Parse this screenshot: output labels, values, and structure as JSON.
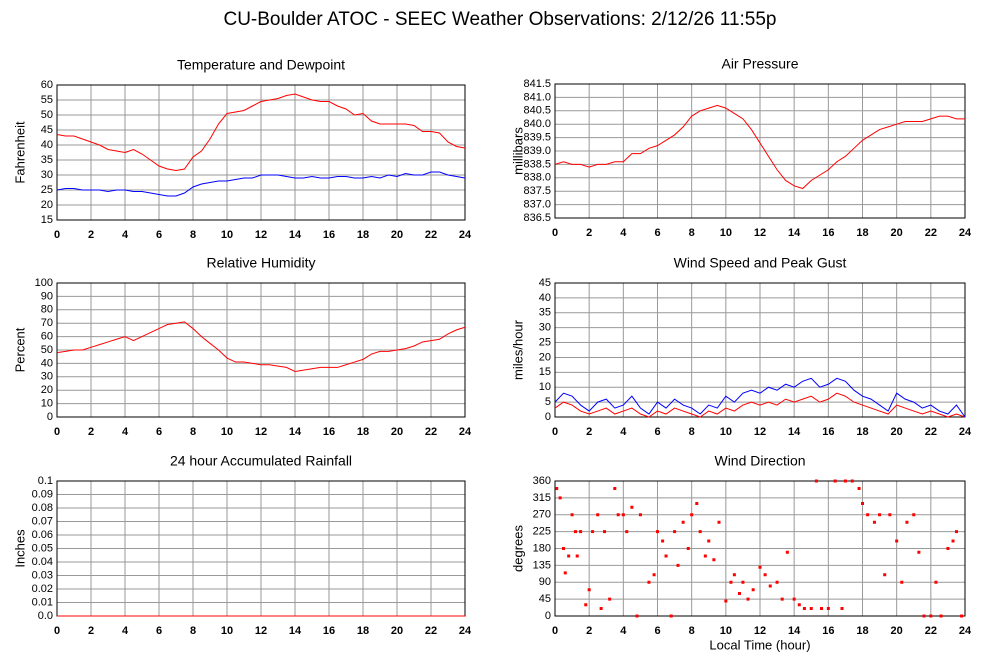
{
  "title": "CU-Boulder ATOC - SEEC Weather Observations: 2/12/26 11:55p",
  "chart_data": [
    {
      "type": "line",
      "title": "Temperature and Dewpoint",
      "y_label": "Fahrenheit",
      "x": [
        0,
        0.5,
        1,
        1.5,
        2,
        2.5,
        3,
        3.5,
        4,
        4.5,
        5,
        5.5,
        6,
        6.5,
        7,
        7.5,
        8,
        8.5,
        9,
        9.5,
        10,
        10.5,
        11,
        11.5,
        12,
        12.5,
        13,
        13.5,
        14,
        14.5,
        15,
        15.5,
        16,
        16.5,
        17,
        17.5,
        18,
        18.5,
        19,
        19.5,
        20,
        20.5,
        21,
        21.5,
        22,
        22.5,
        23,
        23.5,
        24
      ],
      "series": [
        {
          "color": "#ff0000",
          "values": [
            43.5,
            43,
            43,
            42,
            41,
            40,
            38.5,
            38,
            37.5,
            38.5,
            37,
            35,
            33,
            32,
            31.5,
            32,
            36,
            38,
            42,
            47,
            50.5,
            51,
            51.5,
            53,
            54.5,
            55,
            55.5,
            56.5,
            57,
            56,
            55,
            54.5,
            54.5,
            53,
            52,
            50,
            50.5,
            48,
            47,
            47,
            47,
            47,
            46.5,
            44.5,
            44.5,
            44,
            41,
            39.5,
            39
          ]
        },
        {
          "color": "#0000ff",
          "values": [
            25,
            25.5,
            25.5,
            25,
            25,
            25,
            24.5,
            25,
            25,
            24.5,
            24.5,
            24,
            23.5,
            23,
            23,
            24,
            26,
            27,
            27.5,
            28,
            28,
            28.5,
            29,
            29,
            30,
            30,
            30,
            29.5,
            29,
            29,
            29.5,
            29,
            29,
            29.5,
            29.5,
            29,
            29,
            29.5,
            29,
            30,
            29.5,
            30.5,
            30,
            30,
            31,
            31,
            30,
            29.5,
            29
          ]
        }
      ],
      "xlim": [
        0,
        24
      ],
      "xticks": [
        0,
        2,
        4,
        6,
        8,
        10,
        12,
        14,
        16,
        18,
        20,
        22,
        24
      ],
      "ylim": [
        15,
        60
      ],
      "yticks": [
        15,
        20,
        25,
        30,
        35,
        40,
        45,
        50,
        55,
        60
      ],
      "grid": true
    },
    {
      "type": "line",
      "title": "Air Pressure",
      "y_label": "millibars",
      "x": [
        0,
        0.5,
        1,
        1.5,
        2,
        2.5,
        3,
        3.5,
        4,
        4.5,
        5,
        5.5,
        6,
        6.5,
        7,
        7.5,
        8,
        8.5,
        9,
        9.5,
        10,
        10.5,
        11,
        11.5,
        12,
        12.5,
        13,
        13.5,
        14,
        14.5,
        15,
        15.5,
        16,
        16.5,
        17,
        17.5,
        18,
        18.5,
        19,
        19.5,
        20,
        20.5,
        21,
        21.5,
        22,
        22.5,
        23,
        23.5,
        24
      ],
      "series": [
        {
          "color": "#ff0000",
          "values": [
            838.5,
            838.6,
            838.5,
            838.5,
            838.4,
            838.5,
            838.5,
            838.6,
            838.6,
            838.9,
            838.9,
            839.1,
            839.2,
            839.4,
            839.6,
            839.9,
            840.3,
            840.5,
            840.6,
            840.7,
            840.6,
            840.4,
            840.2,
            839.8,
            839.3,
            838.8,
            838.3,
            837.9,
            837.7,
            837.6,
            837.9,
            838.1,
            838.3,
            838.6,
            838.8,
            839.1,
            839.4,
            839.6,
            839.8,
            839.9,
            840.0,
            840.1,
            840.1,
            840.1,
            840.2,
            840.3,
            840.3,
            840.2,
            840.2
          ]
        }
      ],
      "xlim": [
        0,
        24
      ],
      "xticks": [
        0,
        2,
        4,
        6,
        8,
        10,
        12,
        14,
        16,
        18,
        20,
        22,
        24
      ],
      "ylim": [
        836.5,
        841.5
      ],
      "yticks": [
        836.5,
        {
          "value": 837,
          "label": "837.0"
        },
        837.5,
        {
          "value": 838,
          "label": "838.0"
        },
        838.5,
        {
          "value": 839,
          "label": "839.0"
        },
        839.5,
        {
          "value": 840,
          "label": "840.0"
        },
        840.5,
        {
          "value": 841,
          "label": "841.0"
        },
        841.5
      ],
      "grid": true
    },
    {
      "type": "line",
      "title": "Relative Humidity",
      "y_label": "Percent",
      "x": [
        0,
        0.5,
        1,
        1.5,
        2,
        2.5,
        3,
        3.5,
        4,
        4.5,
        5,
        5.5,
        6,
        6.5,
        7,
        7.5,
        8,
        8.5,
        9,
        9.5,
        10,
        10.5,
        11,
        11.5,
        12,
        12.5,
        13,
        13.5,
        14,
        14.5,
        15,
        15.5,
        16,
        16.5,
        17,
        17.5,
        18,
        18.5,
        19,
        19.5,
        20,
        20.5,
        21,
        21.5,
        22,
        22.5,
        23,
        23.5,
        24
      ],
      "series": [
        {
          "color": "#ff0000",
          "values": [
            48,
            49,
            50,
            50,
            52,
            54,
            56,
            58,
            60,
            57,
            60,
            63,
            66,
            69,
            70,
            71,
            66,
            60,
            55,
            50,
            44,
            41,
            41,
            40,
            39,
            39,
            38,
            37,
            34,
            35,
            36,
            37,
            37,
            37,
            39,
            41,
            43,
            47,
            49,
            49,
            50,
            51,
            53,
            56,
            57,
            58,
            62,
            65,
            67
          ]
        }
      ],
      "xlim": [
        0,
        24
      ],
      "xticks": [
        0,
        2,
        4,
        6,
        8,
        10,
        12,
        14,
        16,
        18,
        20,
        22,
        24
      ],
      "ylim": [
        0,
        100
      ],
      "yticks": [
        0,
        10,
        20,
        30,
        40,
        50,
        60,
        70,
        80,
        90,
        100
      ],
      "grid": true
    },
    {
      "type": "line",
      "title": "Wind Speed and Peak Gust",
      "y_label": "miles/hour",
      "x": [
        0,
        0.5,
        1,
        1.5,
        2,
        2.5,
        3,
        3.5,
        4,
        4.5,
        5,
        5.5,
        6,
        6.5,
        7,
        7.5,
        8,
        8.5,
        9,
        9.5,
        10,
        10.5,
        11,
        11.5,
        12,
        12.5,
        13,
        13.5,
        14,
        14.5,
        15,
        15.5,
        16,
        16.5,
        17,
        17.5,
        18,
        18.5,
        19,
        19.5,
        20,
        20.5,
        21,
        21.5,
        22,
        22.5,
        23,
        23.5,
        24
      ],
      "series": [
        {
          "color": "#ff0000",
          "values": [
            3,
            5,
            4,
            2,
            1,
            2,
            3,
            1,
            2,
            3,
            1,
            0,
            2,
            1,
            3,
            2,
            1,
            0,
            2,
            1,
            3,
            2,
            4,
            5,
            4,
            5,
            4,
            6,
            5,
            6,
            7,
            5,
            6,
            8,
            7,
            5,
            4,
            3,
            2,
            1,
            4,
            3,
            2,
            1,
            2,
            1,
            0,
            1,
            0
          ]
        },
        {
          "color": "#0000ff",
          "values": [
            5,
            8,
            7,
            4,
            2,
            5,
            6,
            3,
            4,
            7,
            3,
            1,
            5,
            3,
            6,
            4,
            3,
            1,
            4,
            3,
            7,
            5,
            8,
            9,
            8,
            10,
            9,
            11,
            10,
            12,
            13,
            10,
            11,
            13,
            12,
            9,
            7,
            6,
            4,
            2,
            8,
            6,
            5,
            3,
            4,
            2,
            1,
            4,
            0
          ]
        }
      ],
      "xlim": [
        0,
        24
      ],
      "xticks": [
        0,
        2,
        4,
        6,
        8,
        10,
        12,
        14,
        16,
        18,
        20,
        22,
        24
      ],
      "ylim": [
        0,
        45
      ],
      "yticks": [
        0,
        5,
        10,
        15,
        20,
        25,
        30,
        35,
        40,
        45
      ],
      "grid": true
    },
    {
      "type": "line",
      "title": "24 hour Accumulated Rainfall",
      "y_label": "Inches",
      "x": [
        0,
        24
      ],
      "series": [
        {
          "color": "#ff0000",
          "values": [
            0,
            0
          ]
        }
      ],
      "xlim": [
        0,
        24
      ],
      "xticks": [
        0,
        2,
        4,
        6,
        8,
        10,
        12,
        14,
        16,
        18,
        20,
        22,
        24
      ],
      "ylim": [
        0,
        0.1
      ],
      "yticks": [
        {
          "value": 0,
          "label": "0.0"
        },
        0.01,
        0.02,
        0.03,
        0.04,
        0.05,
        0.06,
        0.07,
        0.08,
        0.09,
        0.1
      ],
      "grid": true
    },
    {
      "type": "scatter",
      "title": "Wind Direction",
      "y_label": "degrees",
      "x_label": "Local Time (hour)",
      "x": [
        0.1,
        0.3,
        0.5,
        0.6,
        0.8,
        1,
        1.2,
        1.3,
        1.5,
        1.8,
        2,
        2.2,
        2.5,
        2.7,
        2.9,
        3.2,
        3.5,
        3.7,
        4,
        4.2,
        4.5,
        4.8,
        5,
        5.5,
        5.8,
        6,
        6.3,
        6.5,
        6.8,
        7,
        7.2,
        7.5,
        7.8,
        8,
        8.3,
        8.5,
        8.8,
        9,
        9.3,
        9.6,
        10,
        10.3,
        10.5,
        10.8,
        11,
        11.3,
        11.6,
        12,
        12.3,
        12.6,
        13,
        13.3,
        13.6,
        14,
        14.3,
        14.6,
        15,
        15.3,
        15.6,
        16,
        16.4,
        16.8,
        17,
        17.4,
        17.8,
        18,
        18.3,
        18.7,
        19,
        19.3,
        19.6,
        20,
        20.3,
        20.6,
        21,
        21.3,
        21.6,
        22,
        22.3,
        22.6,
        23,
        23.3,
        23.5,
        23.8
      ],
      "series": [
        {
          "color": "#ff0000",
          "values": [
            340,
            315,
            180,
            115,
            160,
            270,
            225,
            160,
            225,
            30,
            70,
            225,
            270,
            20,
            225,
            45,
            340,
            270,
            270,
            225,
            290,
            0,
            270,
            90,
            110,
            225,
            200,
            160,
            0,
            225,
            135,
            250,
            180,
            270,
            300,
            225,
            160,
            200,
            150,
            250,
            40,
            90,
            110,
            60,
            90,
            45,
            70,
            130,
            110,
            80,
            90,
            45,
            170,
            45,
            30,
            20,
            20,
            360,
            20,
            20,
            360,
            20,
            360,
            360,
            340,
            300,
            270,
            250,
            270,
            110,
            270,
            200,
            90,
            250,
            270,
            170,
            0,
            0,
            90,
            0,
            180,
            200,
            225,
            0
          ]
        }
      ],
      "xlim": [
        0,
        24
      ],
      "xticks": [
        0,
        2,
        4,
        6,
        8,
        10,
        12,
        14,
        16,
        18,
        20,
        22,
        24
      ],
      "ylim": [
        0,
        360
      ],
      "yticks": [
        0,
        45,
        90,
        135,
        180,
        225,
        270,
        315,
        360
      ],
      "grid": true
    }
  ]
}
